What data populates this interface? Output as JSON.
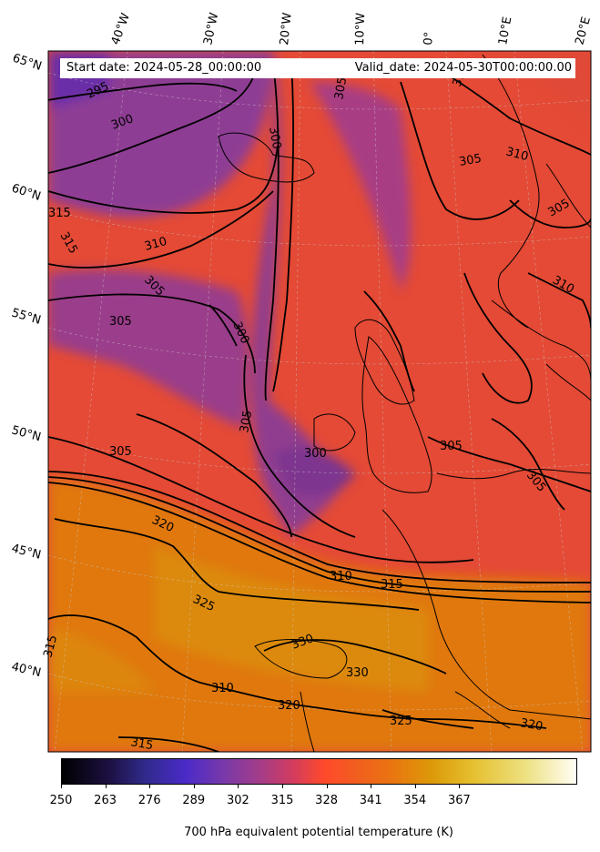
{
  "header": {
    "start_date": "Start date: 2024-05-28_00:00:00",
    "valid_date": "Valid_date: 2024-05-30T00:00:00.00"
  },
  "longitude_labels": [
    "40°W",
    "30°W",
    "20°W",
    "10°W",
    "0°",
    "10°E",
    "20°E"
  ],
  "latitude_labels": [
    "65°N",
    "60°N",
    "55°N",
    "50°N",
    "45°N",
    "40°N"
  ],
  "contour_labels": [
    "295",
    "300",
    "300",
    "305",
    "310",
    "315",
    "315",
    "310",
    "305",
    "305",
    "300",
    "305",
    "300",
    "305",
    "310",
    "305",
    "310",
    "305",
    "305",
    "305",
    "320",
    "310",
    "315",
    "325",
    "330",
    "330",
    "320",
    "325",
    "320",
    "315",
    "315",
    "310"
  ],
  "colorbar": {
    "ticks": [
      "250",
      "263",
      "276",
      "289",
      "302",
      "315",
      "328",
      "341",
      "354",
      "367"
    ],
    "label": "700 hPa equivalent potential temperature (K)",
    "colormap": "CMRmap"
  },
  "colors": {
    "cold_region": "#8a3a96",
    "mid_region": "#e8463a",
    "warm_region": "#e07a10",
    "land_outline": "#000000",
    "contour": "#000000"
  }
}
